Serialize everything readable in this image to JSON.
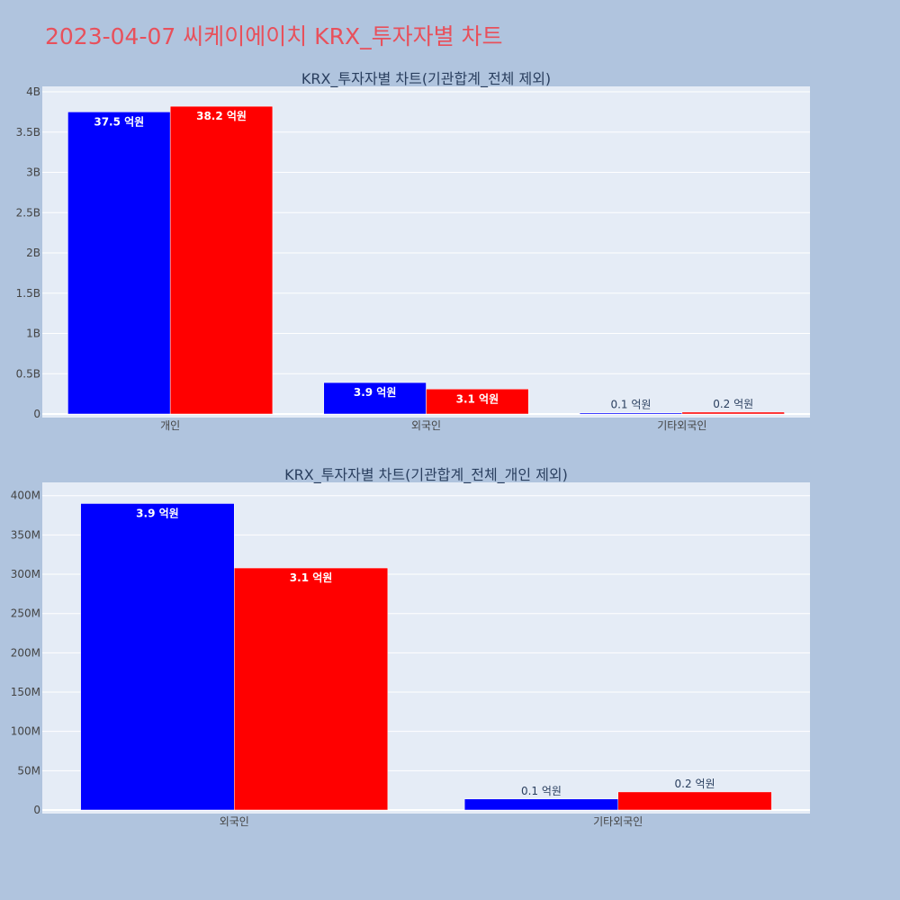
{
  "page_title": "2023-04-07 씨케이에이치 KRX_투자자별 차트",
  "colors": {
    "background": "#b0c4de",
    "plot_background": "#e5ecf6",
    "gridline": "#ffffff",
    "title": "#e8505b",
    "text": "#2a3f5f",
    "tick_text": "#444444"
  },
  "chart_data": [
    {
      "type": "bar",
      "title": "KRX_투자자별 차트(기관합계_전체 제외)",
      "categories": [
        "개인",
        "외국인",
        "기타외국인"
      ],
      "ylim": [
        0,
        4000000000
      ],
      "yticks": [
        {
          "value": 0,
          "label": "0"
        },
        {
          "value": 500000000,
          "label": "0.5B"
        },
        {
          "value": 1000000000,
          "label": "1B"
        },
        {
          "value": 1500000000,
          "label": "1.5B"
        },
        {
          "value": 2000000000,
          "label": "2B"
        },
        {
          "value": 2500000000,
          "label": "2.5B"
        },
        {
          "value": 3000000000,
          "label": "3B"
        },
        {
          "value": 3500000000,
          "label": "3.5B"
        },
        {
          "value": 4000000000,
          "label": "4B"
        }
      ],
      "grid": true,
      "legend": "none",
      "series": [
        {
          "color": "#0000ff",
          "values": [
            3750000000,
            390000000,
            14000000
          ],
          "labels": [
            "37.5 억원",
            "3.9 억원",
            "0.1 억원"
          ]
        },
        {
          "color": "#ff0000",
          "values": [
            3820000000,
            310000000,
            23000000
          ],
          "labels": [
            "38.2 억원",
            "3.1 억원",
            "0.2 억원"
          ]
        }
      ]
    },
    {
      "type": "bar",
      "title": "KRX_투자자별 차트(기관합계_전체_개인 제외)",
      "categories": [
        "외국인",
        "기타외국인"
      ],
      "ylim": [
        0,
        410000000
      ],
      "yticks": [
        {
          "value": 0,
          "label": "0"
        },
        {
          "value": 50000000,
          "label": "50M"
        },
        {
          "value": 100000000,
          "label": "100M"
        },
        {
          "value": 150000000,
          "label": "150M"
        },
        {
          "value": 200000000,
          "label": "200M"
        },
        {
          "value": 250000000,
          "label": "250M"
        },
        {
          "value": 300000000,
          "label": "300M"
        },
        {
          "value": 350000000,
          "label": "350M"
        },
        {
          "value": 400000000,
          "label": "400M"
        }
      ],
      "grid": true,
      "legend": "none",
      "series": [
        {
          "color": "#0000ff",
          "values": [
            390000000,
            14000000
          ],
          "labels": [
            "3.9 억원",
            "0.1 억원"
          ]
        },
        {
          "color": "#ff0000",
          "values": [
            308000000,
            23000000
          ],
          "labels": [
            "3.1 억원",
            "0.2 억원"
          ]
        }
      ]
    }
  ]
}
